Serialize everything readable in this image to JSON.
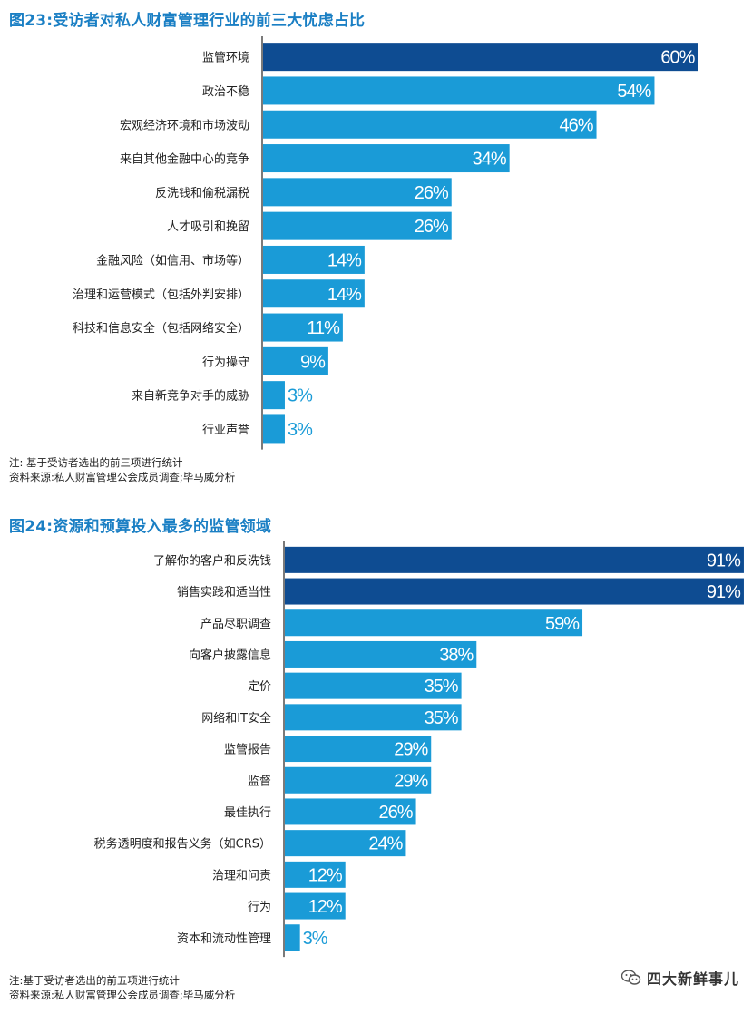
{
  "colors": {
    "highlight": "#0e4c92",
    "bar": "#1a9bd7",
    "axis": "#222222"
  },
  "chart_data": [
    {
      "type": "bar",
      "orientation": "horizontal",
      "title": "图23:受访者对私人财富管理行业的前三大忧虑占比",
      "categories": [
        "监管环境",
        "政治不稳",
        "宏观经济环境和市场波动",
        "来自其他金融中心的竞争",
        "反洗钱和偷税漏税",
        "人才吸引和挽留",
        "金融风险（如信用、市场等）",
        "治理和运营模式（包括外判安排）",
        "科技和信息安全（包括网络安全）",
        "行为操守",
        "来自新竞争对手的威胁",
        "行业声誉"
      ],
      "values": [
        60,
        54,
        46,
        34,
        26,
        26,
        14,
        14,
        11,
        9,
        3,
        3
      ],
      "labels": [
        "60%",
        "54%",
        "46%",
        "34%",
        "26%",
        "26%",
        "14%",
        "14%",
        "11%",
        "9%",
        "3%",
        "3%"
      ],
      "highlight": [
        true,
        false,
        false,
        false,
        false,
        false,
        false,
        false,
        false,
        false,
        false,
        false
      ],
      "unit": "%",
      "xlim": [
        0,
        100
      ]
    },
    {
      "type": "bar",
      "orientation": "horizontal",
      "title": "图24:资源和预算投入最多的监管领域",
      "categories": [
        "了解你的客户和反洗钱",
        "销售实践和适当性",
        "产品尽职调查",
        "向客户披露信息",
        "定价",
        "网络和IT安全",
        "监管报告",
        "监督",
        "最佳执行",
        "税务透明度和报告义务（如CRS）",
        "治理和问责",
        "行为",
        "资本和流动性管理"
      ],
      "values": [
        91,
        91,
        59,
        38,
        35,
        35,
        29,
        29,
        26,
        24,
        12,
        12,
        3
      ],
      "labels": [
        "91%",
        "91%",
        "59%",
        "38%",
        "35%",
        "35%",
        "29%",
        "29%",
        "26%",
        "24%",
        "12%",
        "12%",
        "3%"
      ],
      "highlight": [
        true,
        true,
        false,
        false,
        false,
        false,
        false,
        false,
        false,
        false,
        false,
        false,
        false
      ],
      "unit": "%",
      "xlim": [
        0,
        100
      ]
    }
  ],
  "notes": {
    "note1_line1": "注: 基于受访者选出的前三项进行统计",
    "note1_line2": "资料来源:私人财富管理公会成员调查;毕马威分析",
    "note2_line1": "注:基于受访者选出的前五项进行统计",
    "note2_line2": "资料来源:私人财富管理公会成员调查;毕马威分析"
  },
  "watermark": {
    "text": "四大新鲜事儿",
    "icon": "wechat-icon"
  }
}
